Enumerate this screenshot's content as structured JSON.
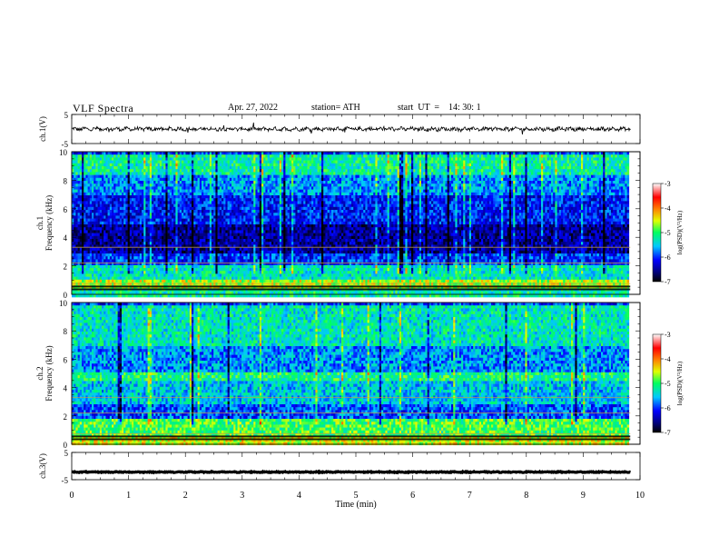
{
  "header": {
    "title": "VLF  Spectra",
    "date": "Apr. 27, 2022",
    "station": "station= ATH",
    "start": "start  UT  =    14: 30: 1"
  },
  "chart_data": [
    {
      "type": "line",
      "panel": "ch1-waveform",
      "ylabel": "ch.1(V)",
      "ylim": [
        -5,
        5
      ],
      "yticks": [
        "5",
        "-5"
      ],
      "x_range": [
        0,
        9.83
      ],
      "description_values": {
        "mean": 0,
        "amplitude_approx": 0.6
      },
      "line_color": "#000000"
    },
    {
      "type": "heatmap",
      "panel": "ch1-spectrogram",
      "ylabel_top": "ch.1",
      "ylabel": "Frequency  (kHz)",
      "ylim": [
        0,
        10
      ],
      "yticks": [
        "0",
        "2",
        "4",
        "6",
        "8",
        "10"
      ],
      "x_range": [
        0,
        9.83
      ],
      "colorbar": {
        "label": "log(PSD)(V²/Hz)",
        "range": [
          -7,
          -3
        ],
        "ticks": [
          "-3",
          "-4",
          "-5",
          "-6",
          "-7"
        ]
      },
      "bands": [
        {
          "f0": 0.0,
          "f1": 0.5,
          "level": -5.2
        },
        {
          "f0": 0.5,
          "f1": 1.2,
          "level": -4.6
        },
        {
          "f0": 1.2,
          "f1": 2.2,
          "level": -5.3
        },
        {
          "f0": 2.2,
          "f1": 3.0,
          "level": -6.0
        },
        {
          "f0": 3.0,
          "f1": 5.0,
          "level": -6.5
        },
        {
          "f0": 5.0,
          "f1": 7.0,
          "level": -6.1
        },
        {
          "f0": 7.0,
          "f1": 8.5,
          "level": -5.7
        },
        {
          "f0": 8.5,
          "f1": 10.0,
          "level": -5.2
        }
      ]
    },
    {
      "type": "heatmap",
      "panel": "ch2-spectrogram",
      "ylabel_top": "ch.2",
      "ylabel": "Frequency  (kHz)",
      "ylim": [
        0,
        10
      ],
      "yticks": [
        "0",
        "2",
        "4",
        "6",
        "8",
        "10"
      ],
      "x_range": [
        0,
        9.83
      ],
      "colorbar": {
        "label": "log(PSD)(V²/Hz)",
        "range": [
          -7,
          -3
        ],
        "ticks": [
          "-3",
          "-4",
          "-5",
          "-6",
          "-7"
        ]
      },
      "bands": [
        {
          "f0": 0.0,
          "f1": 0.6,
          "level": -4.5
        },
        {
          "f0": 0.6,
          "f1": 2.0,
          "level": -4.9
        },
        {
          "f0": 2.0,
          "f1": 3.0,
          "level": -5.9
        },
        {
          "f0": 3.0,
          "f1": 4.5,
          "level": -5.5
        },
        {
          "f0": 4.5,
          "f1": 5.2,
          "level": -5.1
        },
        {
          "f0": 5.2,
          "f1": 7.0,
          "level": -5.7
        },
        {
          "f0": 7.0,
          "f1": 10.0,
          "level": -5.3
        }
      ]
    },
    {
      "type": "line",
      "panel": "ch3-waveform",
      "ylabel": "ch.3(V)",
      "ylim": [
        -5,
        5
      ],
      "yticks": [
        "5",
        "-5"
      ],
      "x_range": [
        0,
        9.83
      ],
      "description_values": {
        "mean": -2.2,
        "amplitude_approx": 0.15
      },
      "line_color": "#000000"
    }
  ],
  "xaxis": {
    "label": "Time  (min)",
    "range": [
      0,
      10
    ],
    "ticks": [
      "0",
      "1",
      "2",
      "3",
      "4",
      "5",
      "6",
      "7",
      "8",
      "9",
      "10"
    ]
  }
}
